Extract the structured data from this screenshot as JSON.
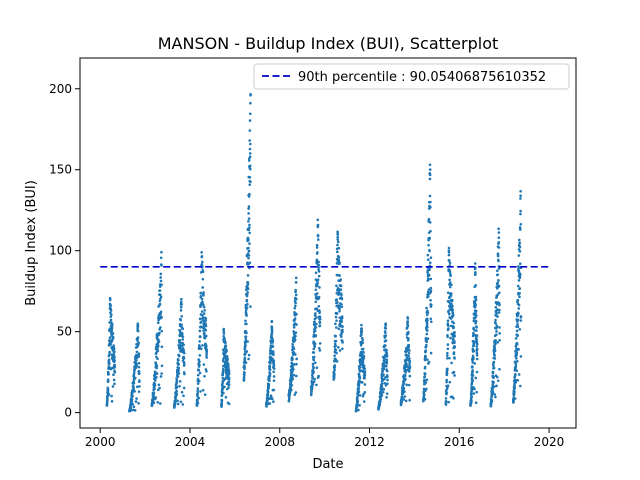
{
  "chart_data": {
    "type": "scatter",
    "title": "MANSON - Buildup Index (BUI), Scatterplot",
    "xlabel": "Date",
    "ylabel": "Buildup Index (BUI)",
    "xlim": [
      1999.1,
      2001.2
    ],
    "xlim_full": [
      1999.1,
      2021.2
    ],
    "ylim": [
      -9.5,
      219
    ],
    "x_ticks": [
      2000,
      2004,
      2008,
      2012,
      2016,
      2020
    ],
    "x_tick_labels": [
      "2000",
      "2004",
      "2008",
      "2012",
      "2016",
      "2020"
    ],
    "y_ticks": [
      0,
      50,
      100,
      150,
      200
    ],
    "y_tick_labels": [
      "0",
      "50",
      "100",
      "150",
      "200"
    ],
    "grid": false,
    "legend_position": "top-right",
    "point_color": "#1f77b4",
    "reference_line": {
      "label": "90th percentile : 90.05406875610352",
      "value": 90.05406875610352,
      "x_range": [
        2000,
        2020
      ],
      "color": "#0000cc",
      "style": "dashed"
    },
    "seasons": [
      {
        "year": 2000,
        "start": 2000.3,
        "end": 2000.65,
        "peak": 72,
        "base": 5,
        "peak_at": 0.4
      },
      {
        "year": 2001,
        "start": 2001.3,
        "end": 2001.75,
        "peak": 56,
        "base": 1,
        "peak_at": 0.85
      },
      {
        "year": 2002,
        "start": 2002.3,
        "end": 2002.75,
        "peak": 100,
        "base": 5,
        "peak_at": 0.95
      },
      {
        "year": 2003,
        "start": 2003.3,
        "end": 2003.75,
        "peak": 72,
        "base": 5,
        "peak_at": 0.7
      },
      {
        "year": 2004,
        "start": 2004.3,
        "end": 2004.75,
        "peak": 100,
        "base": 5,
        "peak_at": 0.5
      },
      {
        "year": 2005,
        "start": 2005.4,
        "end": 2005.75,
        "peak": 52,
        "base": 5,
        "peak_at": 0.3
      },
      {
        "year": 2006,
        "start": 2006.4,
        "end": 2006.7,
        "peak": 208,
        "base": 28,
        "peak_at": 1.0
      },
      {
        "year": 2007,
        "start": 2007.4,
        "end": 2007.75,
        "peak": 57,
        "base": 5,
        "peak_at": 0.7
      },
      {
        "year": 2008,
        "start": 2008.4,
        "end": 2008.75,
        "peak": 84,
        "base": 11,
        "peak_at": 0.95
      },
      {
        "year": 2009,
        "start": 2009.4,
        "end": 2009.8,
        "peak": 120,
        "base": 16,
        "peak_at": 0.75
      },
      {
        "year": 2010,
        "start": 2010.4,
        "end": 2010.8,
        "peak": 116,
        "base": 25,
        "peak_at": 0.45
      },
      {
        "year": 2011,
        "start": 2011.4,
        "end": 2011.8,
        "peak": 55,
        "base": 1,
        "peak_at": 0.6
      },
      {
        "year": 2012,
        "start": 2012.4,
        "end": 2012.8,
        "peak": 58,
        "base": 3,
        "peak_at": 0.8
      },
      {
        "year": 2013,
        "start": 2013.4,
        "end": 2013.8,
        "peak": 60,
        "base": 7,
        "peak_at": 0.75
      },
      {
        "year": 2014,
        "start": 2014.4,
        "end": 2014.75,
        "peak": 157,
        "base": 8,
        "peak_at": 0.85
      },
      {
        "year": 2015,
        "start": 2015.4,
        "end": 2015.8,
        "peak": 103,
        "base": 6,
        "peak_at": 0.35
      },
      {
        "year": 2016,
        "start": 2016.5,
        "end": 2016.8,
        "peak": 93,
        "base": 5,
        "peak_at": 0.7
      },
      {
        "year": 2017,
        "start": 2017.4,
        "end": 2017.8,
        "peak": 115,
        "base": 5,
        "peak_at": 0.9
      },
      {
        "year": 2018,
        "start": 2018.4,
        "end": 2018.75,
        "peak": 138,
        "base": 8,
        "peak_at": 0.95
      }
    ]
  }
}
